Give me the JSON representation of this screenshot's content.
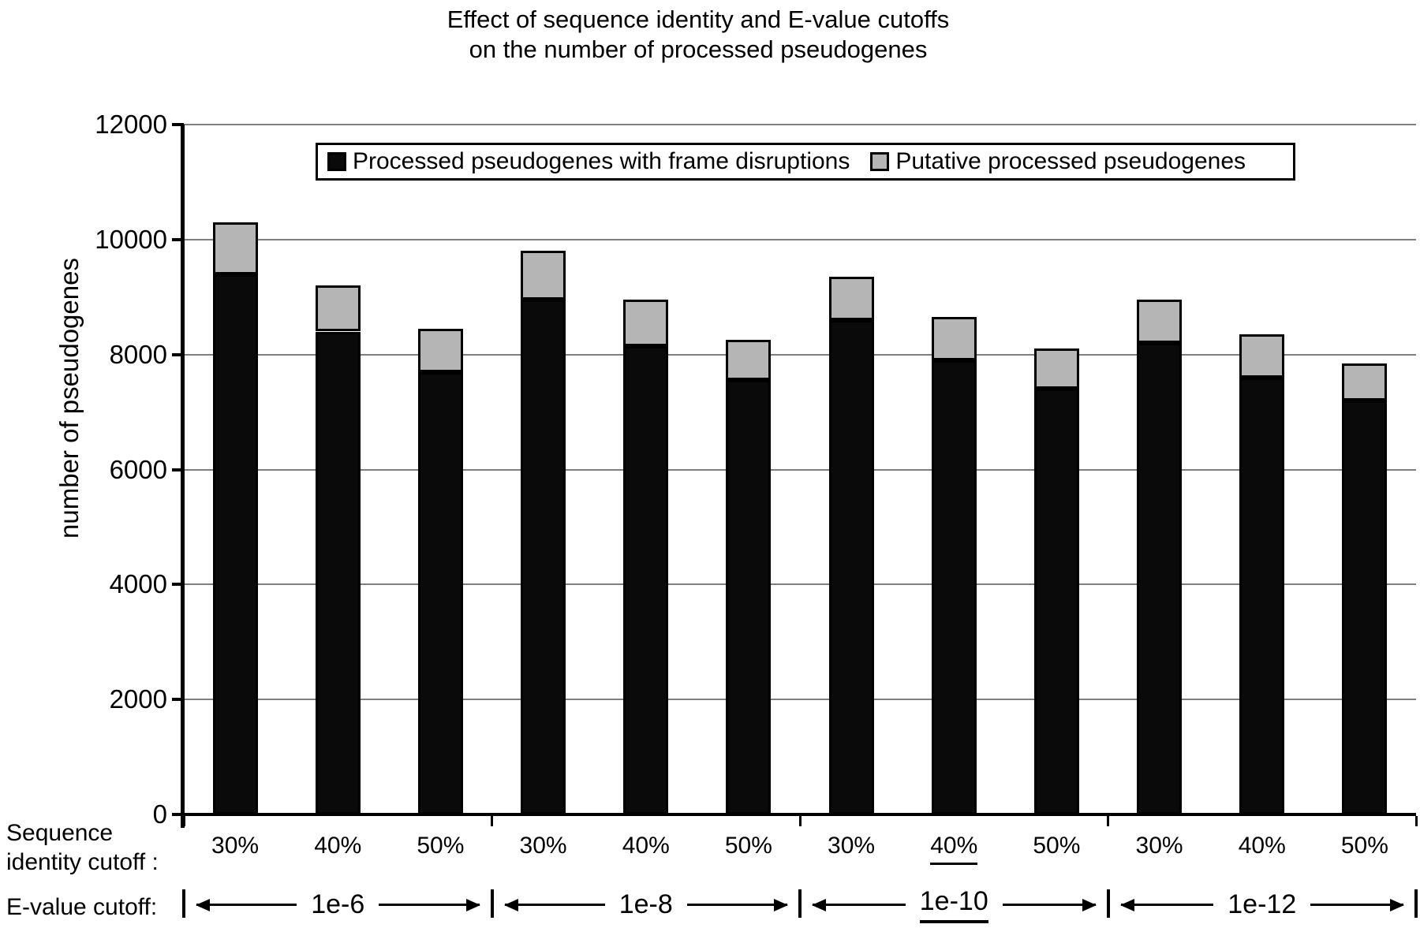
{
  "title": {
    "line1": "Effect of sequence identity and E-value cutoffs",
    "line2": "on the number of processed pseudogenes"
  },
  "y_axis": {
    "label": "number of pseudogenes",
    "ticks": [
      0,
      2000,
      4000,
      6000,
      8000,
      10000,
      12000
    ]
  },
  "legend": [
    {
      "label": "Processed pseudogenes with frame disruptions",
      "color": "#0a0a0a",
      "swatch": "black-square-icon"
    },
    {
      "label": "Putative processed pseudogenes",
      "color": "#b5b5b5",
      "swatch": "gray-square-icon"
    }
  ],
  "x_axis": {
    "identity_caption": "Sequence\nidentity cutoff :",
    "evalue_caption": "E-value cutoff:",
    "identity_labels_per_group": [
      "30%",
      "40%",
      "50%"
    ],
    "evalue_groups": [
      "1e-6",
      "1e-8",
      "1e-10",
      "1e-12"
    ],
    "underlined": {
      "evalue_group": "1e-10",
      "identity_label": "40%"
    }
  },
  "colors": {
    "bar_black": "#0a0a0a",
    "bar_gray": "#b5b5b5",
    "gridline": "#7f7f7f",
    "axis": "#000000",
    "background": "#ffffff"
  },
  "chart_data": {
    "type": "bar",
    "stacked": true,
    "title": "Effect of sequence identity and E-value cutoffs on the number of processed pseudogenes",
    "xlabel": "Sequence identity cutoff (30/40/50%) within E-value cutoff groups (1e-6, 1e-8, 1e-10, 1e-12)",
    "ylabel": "number of pseudogenes",
    "ylim": [
      0,
      12000
    ],
    "ytick_step": 2000,
    "grid": true,
    "legend_position": "top-center-inside",
    "groups": [
      "1e-6",
      "1e-8",
      "1e-10",
      "1e-12"
    ],
    "categories_per_group": [
      "30%",
      "40%",
      "50%"
    ],
    "categories": [
      "1e-6 30%",
      "1e-6 40%",
      "1e-6 50%",
      "1e-8 30%",
      "1e-8 40%",
      "1e-8 50%",
      "1e-10 30%",
      "1e-10 40%",
      "1e-10 50%",
      "1e-12 30%",
      "1e-12 40%",
      "1e-12 50%"
    ],
    "series": [
      {
        "name": "Processed pseudogenes with frame disruptions",
        "color": "#0a0a0a",
        "values": [
          9400,
          8400,
          7700,
          8950,
          8150,
          7550,
          8600,
          7900,
          7400,
          8200,
          7600,
          7200
        ]
      },
      {
        "name": "Putative processed pseudogenes",
        "color": "#b5b5b5",
        "values": [
          900,
          800,
          750,
          850,
          800,
          700,
          750,
          750,
          700,
          750,
          750,
          650
        ]
      }
    ],
    "stacked_totals": [
      10300,
      9200,
      8450,
      9800,
      8950,
      8250,
      9350,
      8650,
      8100,
      8950,
      8350,
      7850
    ],
    "highlighted_default": {
      "evalue": "1e-10",
      "identity": "40%"
    }
  }
}
